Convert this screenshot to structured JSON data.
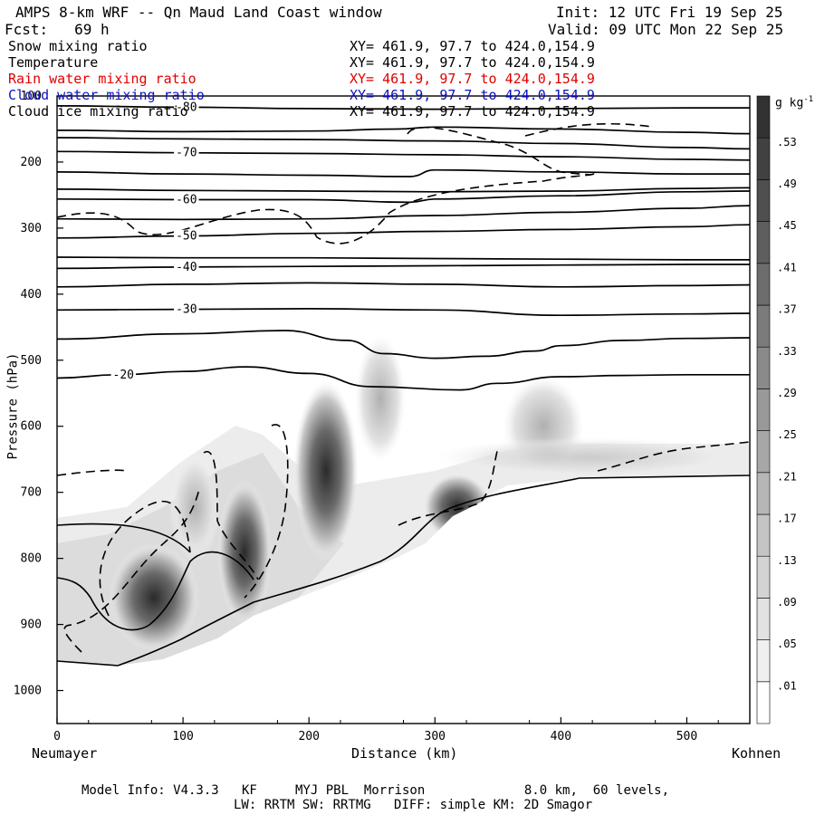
{
  "header": {
    "title": "AMPS 8-km WRF -- Qn Maud Land Coast window",
    "init": "Init: 12 UTC Fri 19 Sep 25",
    "fcst": "Fcst:   69 h",
    "valid": "Valid: 09 UTC Mon 22 Sep 25"
  },
  "fields": [
    {
      "name": "Snow mixing ratio",
      "xy": "XY= 461.9, 97.7 to 424.0,154.9",
      "color": "#000000"
    },
    {
      "name": "Temperature",
      "xy": "XY= 461.9, 97.7 to 424.0,154.9",
      "color": "#000000"
    },
    {
      "name": "Rain water mixing ratio",
      "xy": "XY= 461.9, 97.7 to 424.0,154.9",
      "color": "#e00000"
    },
    {
      "name": "Cloud water mixing ratio",
      "xy": "XY= 461.9, 97.7 to 424.0,154.9",
      "color": "#1010c0"
    },
    {
      "name": "Cloud ice mixing ratio",
      "xy": "XY= 461.9, 97.7 to 424.0,154.9",
      "color": "#000000"
    }
  ],
  "footer": {
    "line1": "Model Info: V4.3.3   KF     MYJ PBL  Morrison             8.0 km,  60 levels,",
    "line2": "LW: RRTM SW: RRTMG   DIFF: simple KM: 2D Smagor"
  },
  "chart_data": {
    "type": "contour",
    "title": "AMPS 8-km WRF -- Qn Maud Land Coast window",
    "xlabel": "Distance (km)",
    "ylabel": "Pressure (hPa)",
    "xlim": [
      0,
      550
    ],
    "ylim": [
      1050,
      100
    ],
    "x_ticks": [
      0,
      100,
      200,
      300,
      400,
      500
    ],
    "y_ticks": [
      100,
      200,
      300,
      400,
      500,
      600,
      700,
      800,
      900,
      1000
    ],
    "x_end_labels": {
      "left": "Neumayer",
      "right": "Kohnen"
    },
    "colorbar": {
      "unit": "g kg",
      "unit_exp": "-1",
      "labels": [
        ".01",
        ".05",
        ".09",
        ".13",
        ".17",
        ".21",
        ".25",
        ".29",
        ".33",
        ".37",
        ".41",
        ".45",
        ".49",
        ".53"
      ]
    },
    "temperature_contours": [
      {
        "label": "-80",
        "points": [
          [
            0,
            115
          ],
          [
            100,
            117
          ],
          [
            200,
            119
          ],
          [
            300,
            120
          ],
          [
            400,
            119
          ],
          [
            500,
            118
          ],
          [
            550,
            118
          ]
        ]
      },
      {
        "label": "",
        "points": [
          [
            0,
            152
          ],
          [
            100,
            154
          ],
          [
            200,
            153
          ],
          [
            270,
            150
          ],
          [
            300,
            147
          ],
          [
            400,
            150
          ],
          [
            500,
            155
          ],
          [
            550,
            157
          ]
        ]
      },
      {
        "label": "",
        "points": [
          [
            0,
            163
          ],
          [
            100,
            165
          ],
          [
            200,
            166
          ],
          [
            300,
            168
          ],
          [
            400,
            172
          ],
          [
            500,
            178
          ],
          [
            550,
            180
          ]
        ]
      },
      {
        "label": "-70",
        "points": [
          [
            0,
            184
          ],
          [
            100,
            186
          ],
          [
            200,
            187
          ],
          [
            300,
            189
          ],
          [
            400,
            192
          ],
          [
            500,
            196
          ],
          [
            550,
            197
          ]
        ]
      },
      {
        "label": "",
        "points": [
          [
            0,
            215
          ],
          [
            100,
            218
          ],
          [
            200,
            220
          ],
          [
            280,
            222
          ],
          [
            300,
            212
          ],
          [
            400,
            215
          ],
          [
            500,
            218
          ],
          [
            550,
            218
          ]
        ]
      },
      {
        "label": "",
        "points": [
          [
            0,
            241
          ],
          [
            100,
            243
          ],
          [
            200,
            244
          ],
          [
            300,
            245
          ],
          [
            400,
            244
          ],
          [
            500,
            240
          ],
          [
            550,
            239
          ]
        ]
      },
      {
        "label": "-60",
        "points": [
          [
            0,
            256
          ],
          [
            100,
            257
          ],
          [
            200,
            257
          ],
          [
            280,
            261
          ],
          [
            300,
            256
          ],
          [
            400,
            251
          ],
          [
            500,
            245
          ],
          [
            550,
            244
          ]
        ]
      },
      {
        "label": "",
        "points": [
          [
            0,
            286
          ],
          [
            100,
            287
          ],
          [
            200,
            286
          ],
          [
            300,
            281
          ],
          [
            400,
            276
          ],
          [
            500,
            270
          ],
          [
            550,
            266
          ]
        ]
      },
      {
        "label": "-50",
        "points": [
          [
            0,
            315
          ],
          [
            100,
            312
          ],
          [
            200,
            308
          ],
          [
            300,
            305
          ],
          [
            400,
            302
          ],
          [
            500,
            298
          ],
          [
            550,
            295
          ]
        ]
      },
      {
        "label": "",
        "points": [
          [
            0,
            344
          ],
          [
            100,
            345
          ],
          [
            200,
            345
          ],
          [
            300,
            346
          ],
          [
            400,
            347
          ],
          [
            500,
            348
          ],
          [
            550,
            348
          ]
        ]
      },
      {
        "label": "-40",
        "points": [
          [
            0,
            361
          ],
          [
            100,
            359
          ],
          [
            200,
            358
          ],
          [
            300,
            357
          ],
          [
            400,
            356
          ],
          [
            500,
            355
          ],
          [
            550,
            355
          ]
        ]
      },
      {
        "label": "",
        "points": [
          [
            0,
            389
          ],
          [
            100,
            385
          ],
          [
            200,
            383
          ],
          [
            300,
            385
          ],
          [
            400,
            389
          ],
          [
            500,
            387
          ],
          [
            550,
            386
          ]
        ]
      },
      {
        "label": "-30",
        "points": [
          [
            0,
            424
          ],
          [
            100,
            423
          ],
          [
            200,
            422
          ],
          [
            300,
            424
          ],
          [
            400,
            432
          ],
          [
            500,
            430
          ],
          [
            550,
            429
          ]
        ]
      },
      {
        "label": "",
        "points": [
          [
            0,
            468
          ],
          [
            100,
            460
          ],
          [
            180,
            455
          ],
          [
            230,
            470
          ],
          [
            260,
            490
          ],
          [
            300,
            497
          ],
          [
            340,
            494
          ],
          [
            380,
            486
          ],
          [
            400,
            478
          ],
          [
            450,
            470
          ],
          [
            500,
            467
          ],
          [
            550,
            466
          ]
        ]
      },
      {
        "label": "-20",
        "points": [
          [
            0,
            527
          ],
          [
            50,
            522
          ],
          [
            100,
            517
          ],
          [
            150,
            510
          ],
          [
            200,
            520
          ],
          [
            250,
            540
          ],
          [
            320,
            545
          ],
          [
            350,
            535
          ],
          [
            400,
            525
          ],
          [
            450,
            523
          ],
          [
            500,
            522
          ],
          [
            550,
            522
          ]
        ]
      }
    ]
  }
}
